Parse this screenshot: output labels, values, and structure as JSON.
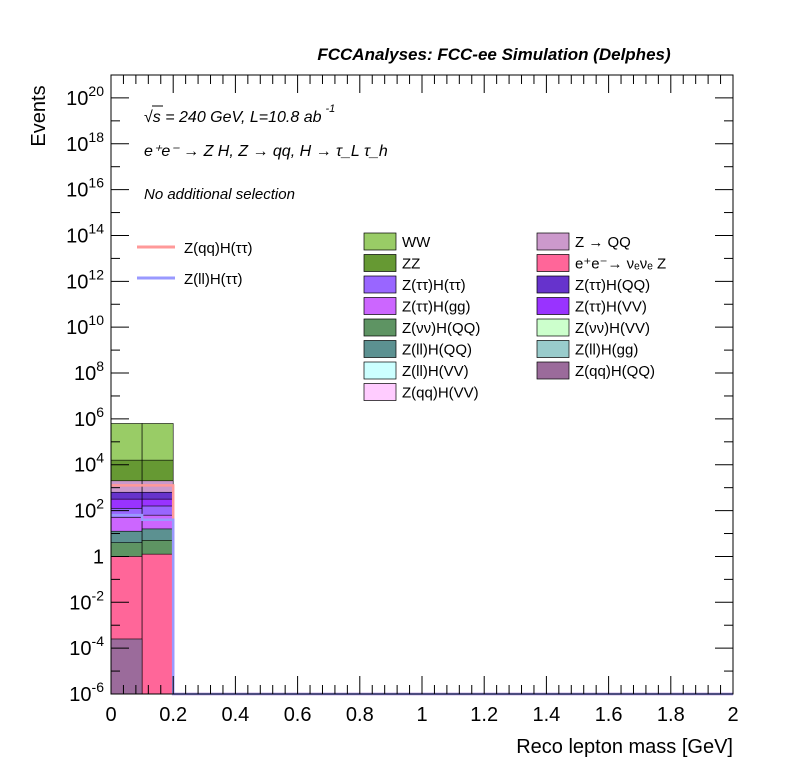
{
  "header": {
    "title": "FCCAnalyses: FCC-ee Simulation (Delphes)"
  },
  "annotations": {
    "energy": "√s = 240 GeV, L=10.8 ab",
    "energy_sup": "-1",
    "process": "e⁺e⁻ → Z H, Z → qq, H → τ_L τ_h",
    "selection": "No additional selection"
  },
  "chart_data": {
    "type": "bar",
    "title": "",
    "xlabel": "Reco lepton mass [GeV]",
    "ylabel": "Events",
    "xlim": [
      0,
      2
    ],
    "ylim_exp": [
      -6,
      21
    ],
    "log_y": true,
    "grid": false,
    "legend_position": "top-center",
    "xticks": [
      "0",
      "0.2",
      "0.4",
      "0.6",
      "0.8",
      "1",
      "1.2",
      "1.4",
      "1.6",
      "1.8",
      "2"
    ],
    "yticks": [
      {
        "base": "10",
        "exp": "-6",
        "value": -6
      },
      {
        "base": "10",
        "exp": "-4",
        "value": -4
      },
      {
        "base": "10",
        "exp": "-2",
        "value": -2
      },
      {
        "base": "1",
        "exp": "",
        "value": 0
      },
      {
        "base": "10",
        "exp": "2",
        "value": 2
      },
      {
        "base": "10",
        "exp": "4",
        "value": 4
      },
      {
        "base": "10",
        "exp": "6",
        "value": 6
      },
      {
        "base": "10",
        "exp": "8",
        "value": 8
      },
      {
        "base": "10",
        "exp": "10",
        "value": 10
      },
      {
        "base": "10",
        "exp": "12",
        "value": 12
      },
      {
        "base": "10",
        "exp": "14",
        "value": 14
      },
      {
        "base": "10",
        "exp": "16",
        "value": 16
      },
      {
        "base": "10",
        "exp": "18",
        "value": 18
      },
      {
        "base": "10",
        "exp": "20",
        "value": 20
      }
    ],
    "stack": [
      {
        "name": "Z(qq)H(QQ)",
        "color": "#9b6b9b",
        "bins": [
          {
            "x0": 0.0,
            "x1": 0.1,
            "log10_top": -3.6
          }
        ]
      },
      {
        "name": "e⁺e⁻→ νₑνₑ Z",
        "color": "#ff6699",
        "bins": [
          {
            "x0": 0.0,
            "x1": 0.1,
            "log10_top": 0.0
          },
          {
            "x0": 0.1,
            "x1": 0.2,
            "log10_top": 0.1
          }
        ]
      },
      {
        "name": "Z(νν)H(QQ)",
        "color": "#5e9463",
        "bins": [
          {
            "x0": 0.0,
            "x1": 0.1,
            "log10_top": 0.6
          },
          {
            "x0": 0.1,
            "x1": 0.2,
            "log10_top": 0.7
          }
        ]
      },
      {
        "name": "Z(ll)H(QQ)",
        "color": "#5c9191",
        "bins": [
          {
            "x0": 0.0,
            "x1": 0.1,
            "log10_top": 1.1
          },
          {
            "x0": 0.1,
            "x1": 0.2,
            "log10_top": 1.2
          }
        ]
      },
      {
        "name": "Z(ττ)H(gg)",
        "color": "#cc66ff",
        "bins": [
          {
            "x0": 0.0,
            "x1": 0.1,
            "log10_top": 1.7
          },
          {
            "x0": 0.1,
            "x1": 0.2,
            "log10_top": 1.8
          }
        ]
      },
      {
        "name": "Z(ττ)H(ττ)",
        "color": "#9966ff",
        "bins": [
          {
            "x0": 0.0,
            "x1": 0.1,
            "log10_top": 2.1
          },
          {
            "x0": 0.1,
            "x1": 0.2,
            "log10_top": 2.2
          }
        ]
      },
      {
        "name": "Z(ττ)H(VV)",
        "color": "#9933ff",
        "bins": [
          {
            "x0": 0.0,
            "x1": 0.1,
            "log10_top": 2.5
          },
          {
            "x0": 0.1,
            "x1": 0.2,
            "log10_top": 2.5
          }
        ]
      },
      {
        "name": "Z(ττ)H(QQ)",
        "color": "#6633cc",
        "bins": [
          {
            "x0": 0.0,
            "x1": 0.1,
            "log10_top": 2.8
          },
          {
            "x0": 0.1,
            "x1": 0.2,
            "log10_top": 2.8
          }
        ]
      },
      {
        "name": "Z → QQ",
        "color": "#cc99cc",
        "bins": [
          {
            "x0": 0.0,
            "x1": 0.1,
            "log10_top": 3.3
          },
          {
            "x0": 0.1,
            "x1": 0.2,
            "log10_top": 3.3
          }
        ]
      },
      {
        "name": "ZZ",
        "color": "#669933",
        "bins": [
          {
            "x0": 0.0,
            "x1": 0.1,
            "log10_top": 4.2
          },
          {
            "x0": 0.1,
            "x1": 0.2,
            "log10_top": 4.2
          }
        ]
      },
      {
        "name": "WW",
        "color": "#99cc66",
        "bins": [
          {
            "x0": 0.0,
            "x1": 0.1,
            "log10_top": 5.8
          },
          {
            "x0": 0.1,
            "x1": 0.2,
            "log10_top": 5.8
          }
        ]
      }
    ],
    "signals": [
      {
        "name": "Z(qq)H(ττ)",
        "color": "#ff9999",
        "bins": [
          {
            "x0": 0.0,
            "x1": 0.2,
            "log10_value": 3.1
          },
          {
            "x0": 0.2,
            "x1": 2.0,
            "log10_value": -6
          }
        ]
      },
      {
        "name": "Z(ll)H(ττ)",
        "color": "#9999ff",
        "bins": [
          {
            "x0": 0.0,
            "x1": 0.1,
            "log10_value": 1.8
          },
          {
            "x0": 0.1,
            "x1": 0.2,
            "log10_value": 1.6
          },
          {
            "x0": 0.2,
            "x1": 2.0,
            "log10_value": -6
          }
        ]
      }
    ],
    "legend_left": [
      {
        "label": "Z(qq)H(ττ)",
        "color": "#ff9999"
      },
      {
        "label": "Z(ll)H(ττ)",
        "color": "#9999ff"
      }
    ],
    "legend_middle": [
      {
        "label": "WW",
        "color": "#99cc66"
      },
      {
        "label": "ZZ",
        "color": "#669933"
      },
      {
        "label": "Z(ττ)H(ττ)",
        "color": "#9966ff"
      },
      {
        "label": "Z(ττ)H(gg)",
        "color": "#cc66ff"
      },
      {
        "label": "Z(νν)H(QQ)",
        "color": "#5e9463"
      },
      {
        "label": "Z(ll)H(QQ)",
        "color": "#5c9191"
      },
      {
        "label": "Z(ll)H(VV)",
        "color": "#ccffff"
      },
      {
        "label": "Z(qq)H(VV)",
        "color": "#ffccff"
      }
    ],
    "legend_right": [
      {
        "label": "Z → QQ",
        "color": "#cc99cc"
      },
      {
        "label": "e⁺e⁻→ νₑνₑ Z",
        "color": "#ff6699"
      },
      {
        "label": "Z(ττ)H(QQ)",
        "color": "#6633cc"
      },
      {
        "label": "Z(ττ)H(VV)",
        "color": "#9933ff"
      },
      {
        "label": "Z(νν)H(VV)",
        "color": "#ccffcc"
      },
      {
        "label": "Z(ll)H(gg)",
        "color": "#99cccc"
      },
      {
        "label": "Z(qq)H(QQ)",
        "color": "#9b6b9b"
      }
    ]
  }
}
